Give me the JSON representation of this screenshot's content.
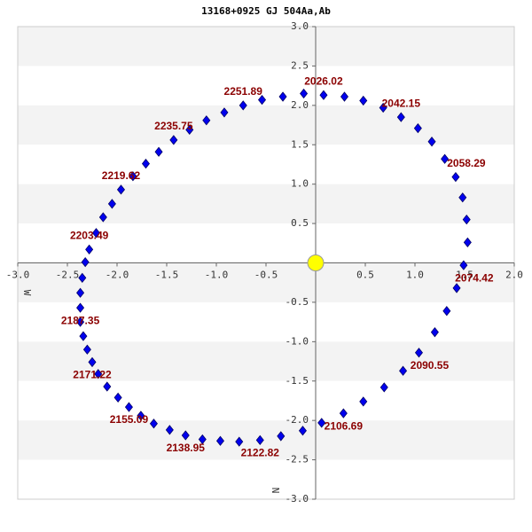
{
  "chart_data": {
    "type": "orbit",
    "title": "13168+0925 GJ  504Aa,Ab",
    "xlabel": "W",
    "ylabel": "N",
    "xlim": [
      -3,
      2
    ],
    "ylim": [
      -3,
      3
    ],
    "xticks": [
      {
        "value": -3,
        "label": "-3.0"
      },
      {
        "value": -2.5,
        "label": "-2.5"
      },
      {
        "value": -2,
        "label": "-2.0"
      },
      {
        "value": -1.5,
        "label": "-1.5"
      },
      {
        "value": -1,
        "label": "-1.0"
      },
      {
        "value": -0.5,
        "label": "-0.5"
      },
      0.5,
      {
        "value": 1,
        "label": "1.0"
      },
      1.5,
      {
        "value": 2,
        "label": "2.0"
      }
    ],
    "yticks": [
      {
        "value": 3,
        "label": "3.0"
      },
      2.5,
      {
        "value": 2,
        "label": "2.0"
      },
      1.5,
      {
        "value": 1,
        "label": "1.0"
      },
      0.5,
      -0.5,
      {
        "value": -1,
        "label": "-1.0"
      },
      -1.5,
      {
        "value": -2,
        "label": "-2.0"
      },
      -2.5,
      {
        "value": -3,
        "label": "-3.0"
      }
    ],
    "color": "#0000ee",
    "label_color": "#8b0000",
    "primary_color": "#ffff00",
    "x": [
      -0.12,
      0.08,
      0.29,
      0.48,
      0.68,
      0.86,
      1.03,
      1.17,
      1.3,
      1.41,
      1.48,
      1.52,
      1.53,
      1.49,
      1.42,
      1.32,
      1.2,
      1.04,
      0.88,
      0.69,
      0.48,
      0.28,
      0.06,
      -0.13,
      -0.35,
      -0.56,
      -0.77,
      -0.96,
      -1.14,
      -1.31,
      -1.47,
      -1.63,
      -1.76,
      -1.88,
      -1.99,
      -2.1,
      -2.19,
      -2.25,
      -2.3,
      -2.34,
      -2.37,
      -2.37,
      -2.37,
      -2.35,
      -2.32,
      -2.28,
      -2.21,
      -2.14,
      -2.05,
      -1.96,
      -1.84,
      -1.71,
      -1.58,
      -1.43,
      -1.27,
      -1.1,
      -0.92,
      -0.73,
      -0.54,
      -0.33
    ],
    "y": [
      2.15,
      2.13,
      2.11,
      2.06,
      1.97,
      1.85,
      1.71,
      1.54,
      1.32,
      1.09,
      0.83,
      0.55,
      0.26,
      -0.03,
      -0.32,
      -0.61,
      -0.88,
      -1.14,
      -1.37,
      -1.58,
      -1.76,
      -1.91,
      -2.03,
      -2.13,
      -2.2,
      -2.25,
      -2.27,
      -2.26,
      -2.24,
      -2.19,
      -2.12,
      -2.04,
      -1.94,
      -1.83,
      -1.71,
      -1.57,
      -1.41,
      -1.26,
      -1.1,
      -0.93,
      -0.75,
      -0.57,
      -0.38,
      -0.19,
      0.01,
      0.17,
      0.38,
      0.58,
      0.75,
      0.93,
      1.1,
      1.26,
      1.41,
      1.56,
      1.69,
      1.81,
      1.91,
      2.0,
      2.07,
      2.11
    ],
    "point_labels": [
      null,
      "2026.02",
      null,
      null,
      null,
      "2042.15",
      null,
      null,
      null,
      "2058.29",
      null,
      null,
      null,
      "2074.42",
      null,
      null,
      null,
      "2090.55",
      null,
      null,
      null,
      "2106.69",
      null,
      null,
      null,
      "2122.82",
      null,
      null,
      null,
      "2138.95",
      null,
      null,
      null,
      "2155.09",
      null,
      null,
      null,
      "2171.22",
      null,
      null,
      null,
      "2187.35",
      null,
      null,
      null,
      "2203.49",
      null,
      null,
      null,
      "2219.62",
      null,
      null,
      null,
      "2235.75",
      null,
      null,
      null,
      "2251.89",
      null,
      null
    ]
  }
}
